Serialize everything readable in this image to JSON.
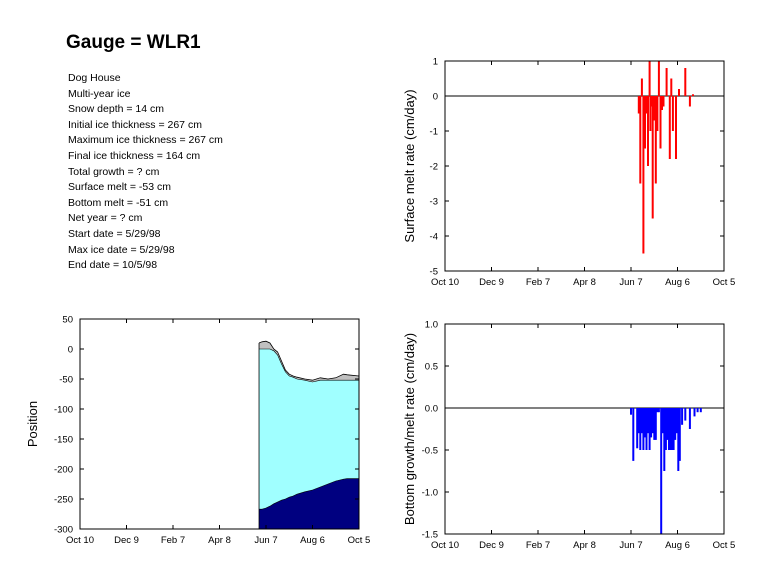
{
  "title": "Gauge = WLR1",
  "info": [
    "Dog House",
    "Multi-year ice",
    "Snow depth = 14 cm",
    "Initial ice thickness = 267 cm",
    "Maximum ice thickness = 267 cm",
    "Final ice thickness =  164 cm",
    "Total growth =  ? cm",
    "Surface melt = -53 cm",
    "Bottom melt =  -51 cm",
    "Net year =       ? cm",
    "Start date =  5/29/98",
    "Max ice date = 5/29/98",
    "End date = 10/5/98"
  ],
  "chart_data": [
    {
      "id": "surface",
      "type": "bar",
      "ylabel": "Surface melt rate (cm/day)",
      "xlim": [
        0,
        360
      ],
      "ylim": [
        -5,
        1
      ],
      "yticks": [
        1,
        0,
        -1,
        -2,
        -3,
        -4,
        -5
      ],
      "ytick_labels": [
        "1",
        "0",
        "-1",
        "-2",
        "-3",
        "-4",
        "-5"
      ],
      "xtick_positions": [
        0,
        60,
        120,
        180,
        240,
        300,
        360
      ],
      "xtick_labels": [
        "Oct 10",
        "Dec 9",
        "Feb 7",
        "Apr 8",
        "Jun 7",
        "Aug 6",
        "Oct 5"
      ],
      "color": "#ff0000",
      "x": [
        250,
        252,
        254,
        256,
        258,
        260,
        262,
        264,
        265,
        266,
        268,
        270,
        272,
        274,
        276,
        278,
        280,
        282,
        286,
        290,
        292,
        294,
        298,
        302,
        310,
        316,
        320
      ],
      "values": [
        -0.5,
        -2.5,
        0.5,
        -4.5,
        -1.5,
        -0.5,
        -2.0,
        1.0,
        -1.0,
        -0.3,
        -3.5,
        -0.7,
        -2.5,
        -1.0,
        1.0,
        -1.5,
        -0.4,
        -0.3,
        0.8,
        -1.8,
        0.5,
        -1.0,
        -1.8,
        0.2,
        0.8,
        -0.3,
        0.05
      ]
    },
    {
      "id": "position",
      "type": "area",
      "ylabel": "Position",
      "xlim": [
        0,
        360
      ],
      "ylim": [
        -300,
        50
      ],
      "yticks": [
        50,
        0,
        -50,
        -100,
        -150,
        -200,
        -250,
        -300
      ],
      "ytick_labels": [
        "50",
        "0",
        "-50",
        "-100",
        "-150",
        "-200",
        "-250",
        "-300"
      ],
      "xtick_positions": [
        0,
        60,
        120,
        180,
        240,
        300,
        360
      ],
      "xtick_labels": [
        "Oct 10",
        "Dec 9",
        "Feb 7",
        "Apr 8",
        "Jun 7",
        "Aug 6",
        "Oct 5"
      ],
      "colors": {
        "snow": "#c0c0c0",
        "ice": "#a0ffff",
        "water": "#000080"
      },
      "x": [
        231,
        235,
        240,
        245,
        250,
        255,
        260,
        265,
        270,
        275,
        280,
        290,
        300,
        310,
        320,
        330,
        340,
        345,
        360
      ],
      "snow_surface": [
        10,
        12,
        13,
        10,
        0,
        -5,
        -20,
        -35,
        -42,
        -45,
        -47,
        -50,
        -52,
        -48,
        -50,
        -48,
        -42,
        -43,
        -45
      ],
      "ice_surface": [
        0,
        0,
        0,
        0,
        -3,
        -10,
        -25,
        -38,
        -45,
        -47,
        -50,
        -52,
        -55,
        -52,
        -52,
        -52,
        -52,
        -52,
        -52
      ],
      "ice_bottom": [
        -267,
        -267,
        -265,
        -262,
        -258,
        -255,
        -252,
        -250,
        -247,
        -245,
        -242,
        -238,
        -235,
        -230,
        -225,
        -220,
        -217,
        -216,
        -216
      ]
    },
    {
      "id": "bottom",
      "type": "bar",
      "ylabel": "Bottom growth/melt rate (cm/day)",
      "xlim": [
        0,
        360
      ],
      "ylim": [
        -1.5,
        1.0
      ],
      "yticks": [
        1.0,
        0.5,
        0.0,
        -0.5,
        -1.0,
        -1.5
      ],
      "ytick_labels": [
        "1.0",
        "0.5",
        "0.0",
        "-0.5",
        "-1.0",
        "-1.5"
      ],
      "xtick_positions": [
        0,
        60,
        120,
        180,
        240,
        300,
        360
      ],
      "xtick_labels": [
        "Oct 10",
        "Dec 9",
        "Feb 7",
        "Apr 8",
        "Jun 7",
        "Aug 6",
        "Oct 5"
      ],
      "color": "#0000ff",
      "x": [
        240,
        243,
        248,
        250,
        252,
        254,
        256,
        258,
        260,
        262,
        264,
        266,
        268,
        270,
        272,
        274,
        276,
        279,
        281,
        283,
        285,
        287,
        289,
        291,
        293,
        295,
        297,
        299,
        301,
        303,
        306,
        310,
        316,
        322,
        326,
        330
      ],
      "values": [
        -0.08,
        -0.63,
        -0.48,
        -0.3,
        -0.5,
        -0.3,
        -0.5,
        -0.35,
        -0.5,
        -0.3,
        -0.5,
        -0.35,
        -0.3,
        -0.38,
        -0.38,
        -0.05,
        -0.05,
        -1.5,
        -0.3,
        -0.75,
        -0.5,
        -0.38,
        -0.5,
        -0.5,
        -0.5,
        -0.5,
        -0.38,
        -0.3,
        -0.75,
        -0.63,
        -0.2,
        -0.15,
        -0.25,
        -0.1,
        -0.05,
        -0.05
      ]
    }
  ]
}
